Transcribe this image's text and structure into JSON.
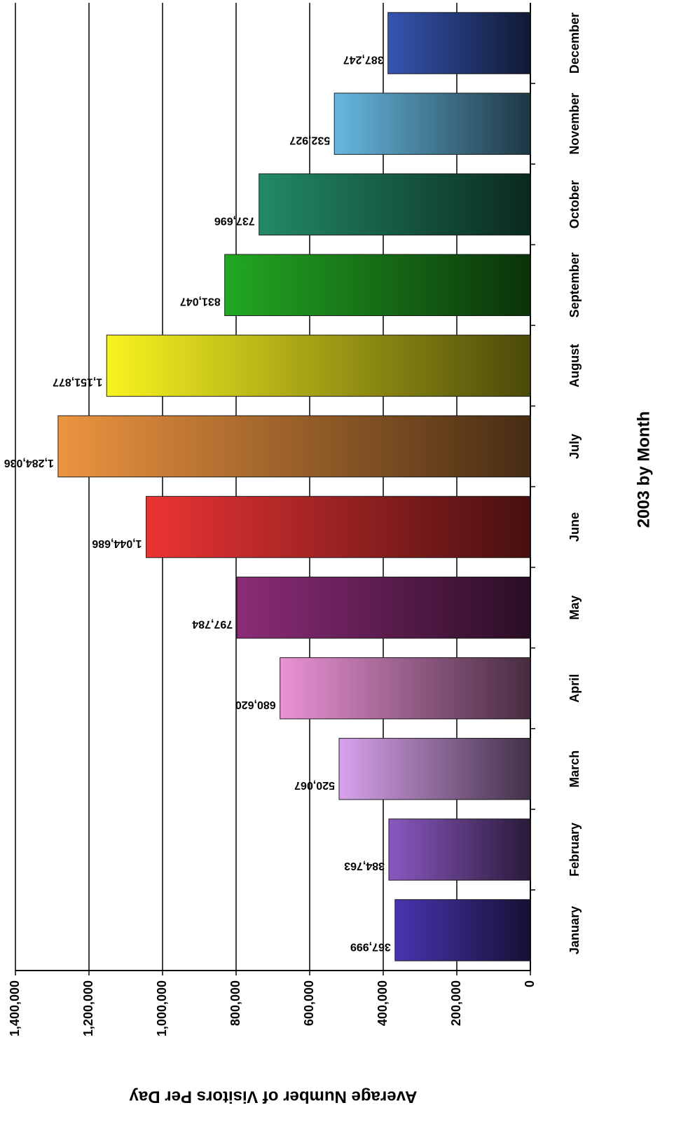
{
  "chart_data": {
    "type": "bar",
    "x_label": "2003 by Month",
    "y_label": "Average Number of Visitors Per Day",
    "categories": [
      "January",
      "February",
      "March",
      "April",
      "May",
      "June",
      "July",
      "August",
      "September",
      "October",
      "November",
      "December"
    ],
    "values": [
      367999,
      384763,
      520067,
      680620,
      797784,
      1044686,
      1284036,
      1151877,
      831047,
      737696,
      532927,
      387247
    ],
    "value_labels": [
      "367,999",
      "384,763",
      "520,067",
      "680,620",
      "797,784",
      "1,044,686",
      "1,284,036",
      "1,151,877",
      "831,047",
      "737,696",
      "532,927",
      "387,247"
    ],
    "colors": [
      "#4a34b0",
      "#8a58c0",
      "#d8a2ec",
      "#ea92d4",
      "#8c2c78",
      "#ec3434",
      "#ec9440",
      "#f8f420",
      "#22a822",
      "#228a66",
      "#66b8e0",
      "#3454b0"
    ],
    "ylim": [
      0,
      1400000
    ],
    "yticks": [
      0,
      {
        "value": 200000,
        "label": "200,000"
      },
      {
        "value": 400000,
        "label": "400,000"
      },
      {
        "value": 600000,
        "label": "600,000"
      },
      {
        "value": 800000,
        "label": "800,000"
      },
      {
        "value": 1000000,
        "label": "1,000,000"
      },
      {
        "value": 1200000,
        "label": "1,200,000"
      },
      {
        "value": 1400000,
        "label": "1,400,000"
      }
    ],
    "grid": true
  }
}
